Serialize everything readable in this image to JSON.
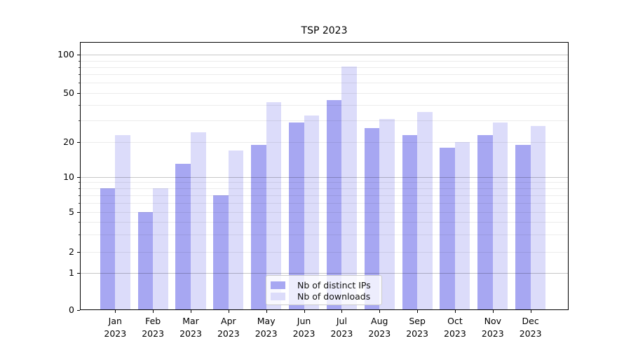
{
  "title": "TSP 2023",
  "chart_data": {
    "type": "bar",
    "title": "TSP 2023",
    "categories": [
      "Jan 2023",
      "Feb 2023",
      "Mar 2023",
      "Apr 2023",
      "May 2023",
      "Jun 2023",
      "Jul 2023",
      "Aug 2023",
      "Sep 2023",
      "Oct 2023",
      "Nov 2023",
      "Dec 2023"
    ],
    "x_tick_months": [
      "Jan",
      "Feb",
      "Mar",
      "Apr",
      "May",
      "Jun",
      "Jul",
      "Aug",
      "Sep",
      "Oct",
      "Nov",
      "Dec"
    ],
    "x_tick_year": "2023",
    "series": [
      {
        "name": "Nb of distinct IPs",
        "color": "#a7a7f2",
        "values": [
          8,
          5,
          13,
          7,
          19,
          29,
          44,
          26,
          23,
          18,
          23,
          19
        ]
      },
      {
        "name": "Nb of downloads",
        "color": "#dcdcfa",
        "values": [
          23,
          8,
          24,
          17,
          42,
          33,
          81,
          31,
          35,
          20,
          29,
          27
        ]
      }
    ],
    "xlabel": "",
    "ylabel": "",
    "y_scale": "symlog",
    "ylim": [
      0,
      126
    ],
    "y_ticks_labeled": [
      0,
      1,
      2,
      5,
      10,
      20,
      50,
      100
    ],
    "gridlines_major": [
      1,
      10,
      100
    ],
    "gridlines_minor": [
      2,
      3,
      4,
      5,
      6,
      7,
      8,
      9,
      20,
      30,
      40,
      50,
      60,
      70,
      80,
      90
    ],
    "grid": true,
    "legend_position": "lower center",
    "colors": {
      "grid_major": "rgba(0,0,0,0.22)",
      "grid_minor": "rgba(0,0,0,0.075)",
      "axis": "#000000",
      "background": "#ffffff"
    }
  }
}
